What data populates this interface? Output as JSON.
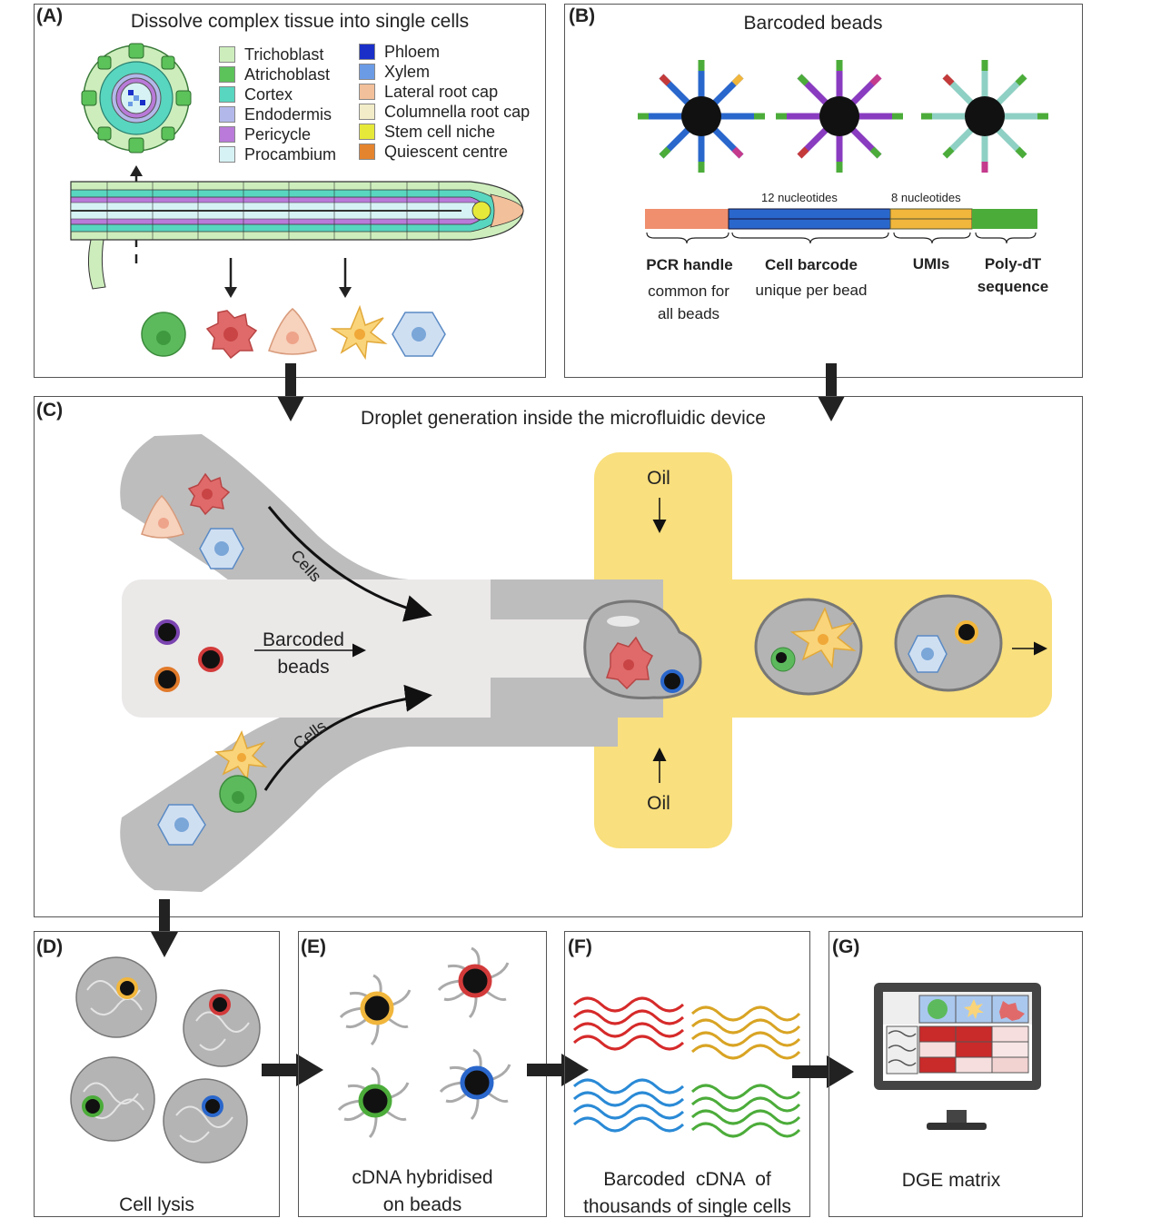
{
  "panels": {
    "a": {
      "label": "(A)",
      "title": "Dissolve complex tissue into single cells",
      "legend_left": [
        {
          "label": "Trichoblast",
          "color": "#cdeebc"
        },
        {
          "label": "Atrichoblast",
          "color": "#5cc25a"
        },
        {
          "label": "Cortex",
          "color": "#58d6bf"
        },
        {
          "label": "Endodermis",
          "color": "#b3b8ea"
        },
        {
          "label": "Pericycle",
          "color": "#b97ad9"
        },
        {
          "label": "Procambium",
          "color": "#d7f2f4"
        }
      ],
      "legend_right": [
        {
          "label": "Phloem",
          "color": "#1a2fc8"
        },
        {
          "label": "Xylem",
          "color": "#6c9be6"
        },
        {
          "label": "Lateral root cap",
          "color": "#f2c09a"
        },
        {
          "label": "Columnella root cap",
          "color": "#f2ecc8"
        },
        {
          "label": "Stem cell niche",
          "color": "#e6e93a"
        },
        {
          "label": "Quiescent centre",
          "color": "#e5842e"
        }
      ]
    },
    "b": {
      "label": "(B)",
      "title": "Barcoded beads",
      "nuc12": "12 nucleotides",
      "nuc8": "8 nucleotides",
      "seg_pcr": "PCR handle",
      "seg_pcr_desc1": "common for",
      "seg_pcr_desc2": "all beads",
      "seg_cell": "Cell barcode",
      "seg_cell_desc": "unique per bead",
      "seg_umi": "UMIs",
      "seg_polydt1": "Poly-dT",
      "seg_polydt2": "sequence",
      "colors": {
        "pcr": "#ef8f6d",
        "barcode": "#2a67cc",
        "umi": "#f1b63c",
        "polydt": "#4cac3a"
      }
    },
    "c": {
      "label": "(C)",
      "title": "Droplet generation inside the microfluidic device",
      "oil_top": "Oil",
      "oil_bottom": "Oil",
      "cells_top": "Cells",
      "cells_bottom": "Cells",
      "beads_1": "Barcoded",
      "beads_2": "beads"
    },
    "d": {
      "label": "(D)",
      "caption": "Cell lysis"
    },
    "e": {
      "label": "(E)",
      "caption_1": "cDNA hybridised",
      "caption_2": "on beads"
    },
    "f": {
      "label": "(F)",
      "caption_1": "Barcoded  cDNA  of",
      "caption_2": "thousands of single cells"
    },
    "g": {
      "label": "(G)",
      "caption": "DGE matrix"
    }
  }
}
